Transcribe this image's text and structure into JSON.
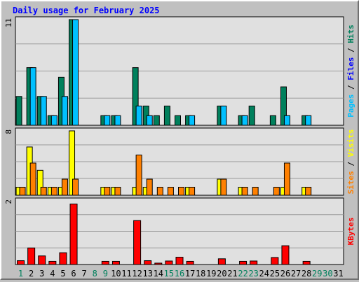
{
  "title": "Daily usage for February 2025",
  "colors": {
    "background": "#c0c0c0",
    "plot_bg": "#e0e0e0",
    "gridline": "#9a9a9a",
    "hits": "#00805c",
    "files": "#00c0ff",
    "pages": "#00c0ff",
    "visits": "#ffff00",
    "sites": "#ff8000",
    "kbytes": "#ff0000",
    "title_text": "#0000ff",
    "day_weekend": "#00805c",
    "day_weekday": "#000000"
  },
  "panels": [
    {
      "id": "hits-files-pages",
      "scale_label": "11",
      "ymax": 11,
      "label_parts": [
        {
          "text": "Pages",
          "color": "#00c0ff"
        },
        {
          "text": " / ",
          "color": "#000000"
        },
        {
          "text": "Files",
          "color": "#0000ff"
        },
        {
          "text": " / ",
          "color": "#000000"
        },
        {
          "text": "Hits",
          "color": "#00805c"
        }
      ]
    },
    {
      "id": "visits-sites",
      "scale_label": "8",
      "ymax": 8,
      "label_parts": [
        {
          "text": "Sites",
          "color": "#ff8000"
        },
        {
          "text": " / ",
          "color": "#000000"
        },
        {
          "text": "Visits",
          "color": "#ffff00"
        }
      ]
    },
    {
      "id": "kbytes",
      "scale_label": "2",
      "ymax": 2,
      "label_parts": [
        {
          "text": "KBytes",
          "color": "#ff0000"
        }
      ]
    }
  ],
  "chart_data": {
    "type": "bar",
    "title": "Daily usage for February 2025",
    "categories": [
      "1",
      "2",
      "3",
      "4",
      "5",
      "6",
      "7",
      "8",
      "9",
      "10",
      "11",
      "12",
      "13",
      "14",
      "15",
      "16",
      "17",
      "18",
      "19",
      "20",
      "21",
      "22",
      "23",
      "24",
      "25",
      "26",
      "27",
      "28",
      "29",
      "30",
      "31"
    ],
    "weekend_days": [
      "1",
      "8",
      "9",
      "15",
      "16",
      "22",
      "23",
      "29",
      "30"
    ],
    "series": [
      {
        "name": "Hits",
        "panel": 0,
        "color": "#00805c",
        "values": [
          3,
          6,
          3,
          1,
          5,
          11,
          0,
          0,
          1,
          1,
          0,
          6,
          2,
          1,
          2,
          1,
          1,
          0,
          0,
          2,
          0,
          1,
          2,
          0,
          1,
          4,
          0,
          1,
          0,
          0,
          0
        ]
      },
      {
        "name": "Files",
        "panel": 0,
        "color": "#00c0ff",
        "values": [
          0,
          6,
          3,
          1,
          3,
          11,
          0,
          0,
          1,
          1,
          0,
          2,
          1,
          0,
          0,
          0,
          1,
          0,
          0,
          2,
          0,
          1,
          0,
          0,
          0,
          1,
          0,
          1,
          0,
          0,
          0
        ]
      },
      {
        "name": "Pages",
        "panel": 0,
        "color": "#00c0ff",
        "values": [
          0,
          0,
          0,
          0,
          0,
          0,
          0,
          0,
          0,
          0,
          0,
          0,
          0,
          0,
          0,
          0,
          0,
          0,
          0,
          0,
          0,
          0,
          0,
          0,
          0,
          0,
          0,
          0,
          0,
          0,
          0
        ]
      },
      {
        "name": "Visits",
        "panel": 1,
        "color": "#ffff00",
        "values": [
          1,
          6,
          3.1,
          1,
          1,
          8,
          0,
          0,
          1,
          1,
          0,
          1,
          1,
          0,
          0,
          0,
          1,
          0,
          0,
          2,
          0,
          1,
          0,
          0,
          0,
          1,
          0,
          1,
          0,
          0,
          0
        ]
      },
      {
        "name": "Sites",
        "panel": 1,
        "color": "#ff8000",
        "values": [
          1,
          4,
          1,
          1,
          2,
          2,
          0,
          0,
          1,
          1,
          0,
          5,
          2,
          1,
          1,
          1,
          1,
          0,
          0,
          2,
          0,
          1,
          1,
          0,
          1,
          4,
          0,
          1,
          0,
          0,
          0
        ]
      },
      {
        "name": "KBytes",
        "panel": 2,
        "color": "#ff0000",
        "values": [
          0.12,
          0.52,
          0.27,
          0.1,
          0.37,
          1.9,
          0,
          0,
          0.1,
          0.1,
          0,
          1.38,
          0.12,
          0.03,
          0.11,
          0.23,
          0.1,
          0,
          0,
          0.18,
          0,
          0.1,
          0.11,
          0,
          0.22,
          0.59,
          0,
          0.1,
          0,
          0,
          0
        ]
      }
    ]
  }
}
